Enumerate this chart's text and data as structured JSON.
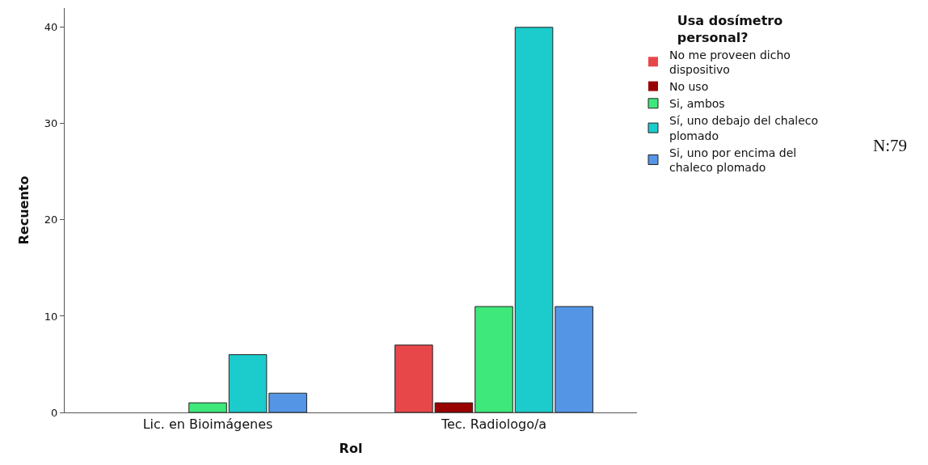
{
  "chart_data": {
    "type": "bar",
    "xlabel": "Rol",
    "ylabel": "Recuento",
    "legend_title": "Usa dosímetro personal?",
    "categories": [
      "Lic. en Bioimágenes",
      "Tec. Radiologo/a"
    ],
    "series": [
      {
        "name": "No me proveen dicho dispositivo",
        "color": "#e8474a",
        "values": [
          0,
          7
        ]
      },
      {
        "name": "No uso",
        "color": "#990000",
        "values": [
          0,
          1
        ]
      },
      {
        "name": "Si, ambos",
        "color": "#3ee87a",
        "values": [
          1,
          11
        ]
      },
      {
        "name": "Sí, uno debajo del chaleco plomado",
        "color": "#1ccbcb",
        "values": [
          6,
          40
        ]
      },
      {
        "name": "Si, uno por encima del chaleco plomado",
        "color": "#5595e5",
        "values": [
          2,
          11
        ]
      }
    ],
    "ylim": [
      0,
      42
    ],
    "yticks": [
      0,
      10,
      20,
      30,
      40
    ],
    "legend": "top right",
    "annotations": [
      "N:79"
    ]
  }
}
